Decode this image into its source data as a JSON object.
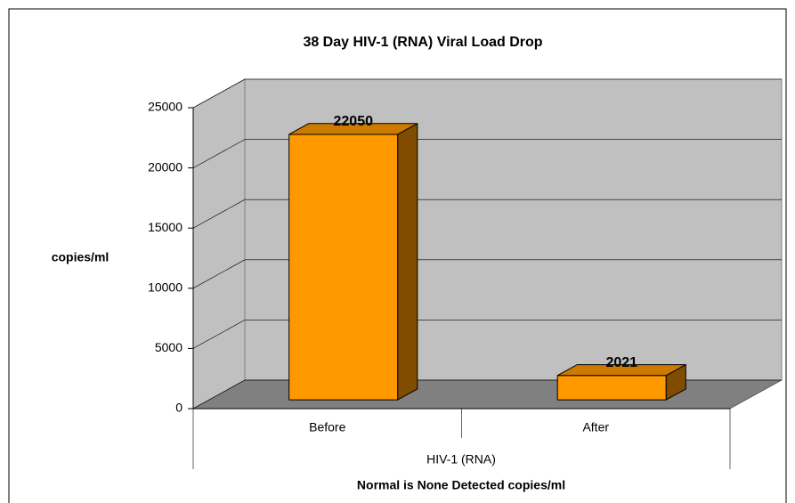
{
  "chart_data": {
    "type": "bar3d",
    "title": "38 Day HIV-1 (RNA) Viral Load Drop",
    "ylabel": "copies/ml",
    "group_label": "HIV-1 (RNA)",
    "xlabel": "Normal is None Detected  copies/ml",
    "categories": [
      "Before",
      "After"
    ],
    "values": [
      22050,
      2021
    ],
    "color": "#ff9900",
    "ylim": [
      0,
      25000
    ],
    "yticks": [
      0,
      5000,
      10000,
      15000,
      20000,
      25000
    ],
    "grid": true
  }
}
